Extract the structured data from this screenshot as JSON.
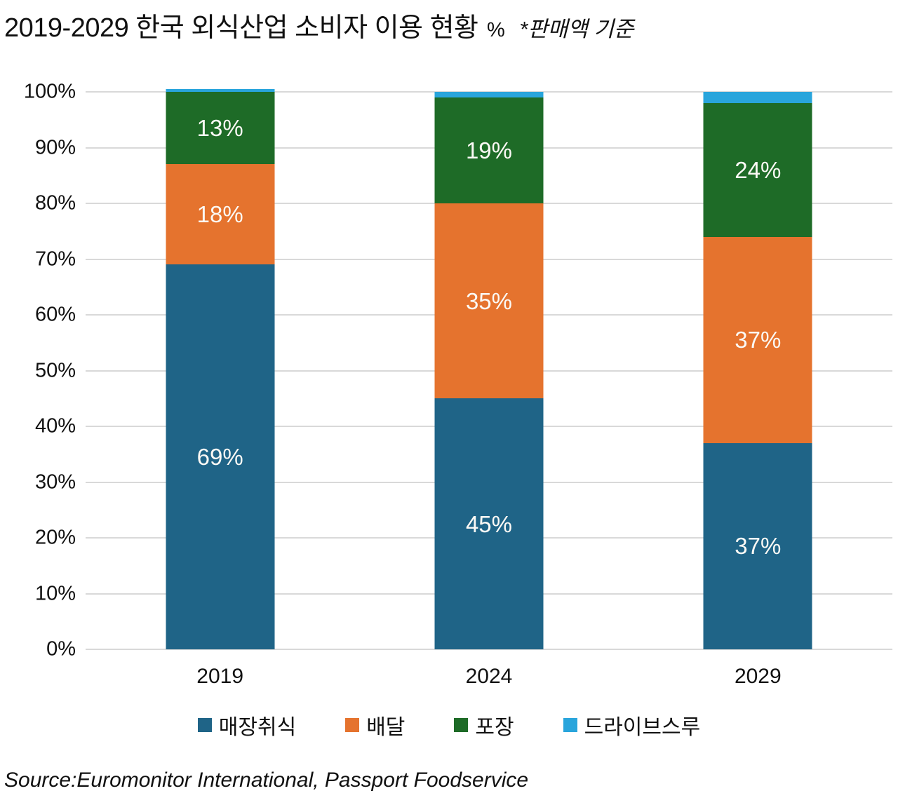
{
  "title": {
    "main": "2019-2029 한국 외식산업 소비자 이용 현황",
    "unit": "%",
    "note": "*판매액 기준"
  },
  "source": "Source:Euromonitor International, Passport Foodservice",
  "colors": {
    "dine_in": "#1F6487",
    "delivery": "#E5732E",
    "takeaway": "#1E6B27",
    "drive_through": "#29A5DC",
    "gridline": "#D9D9D9",
    "data_label": "#FBF9F5",
    "text": "#111111"
  },
  "chart_data": {
    "type": "bar",
    "stacked": true,
    "title": "2019-2029 한국 외식산업 소비자 이용 현황 % *판매액 기준",
    "categories": [
      "2019",
      "2024",
      "2029"
    ],
    "series": [
      {
        "name": "매장취식",
        "color": "#1F6487",
        "values": [
          69,
          45,
          37
        ],
        "labels": [
          "69%",
          "45%",
          "37%"
        ]
      },
      {
        "name": "배달",
        "color": "#E5732E",
        "values": [
          18,
          35,
          37
        ],
        "labels": [
          "18%",
          "35%",
          "37%"
        ]
      },
      {
        "name": "포장",
        "color": "#1E6B27",
        "values": [
          13,
          19,
          24
        ],
        "labels": [
          "13%",
          "19%",
          "24%"
        ]
      },
      {
        "name": "드라이브스루",
        "color": "#29A5DC",
        "values": [
          0.5,
          1,
          2
        ],
        "labels": [
          "",
          "",
          ""
        ]
      }
    ],
    "xlabel": "",
    "ylabel": "",
    "ylim": [
      0,
      100
    ],
    "yticks": [
      "0%",
      "10%",
      "20%",
      "30%",
      "40%",
      "50%",
      "60%",
      "70%",
      "80%",
      "90%",
      "100%"
    ],
    "grid": true,
    "legend_position": "bottom"
  }
}
